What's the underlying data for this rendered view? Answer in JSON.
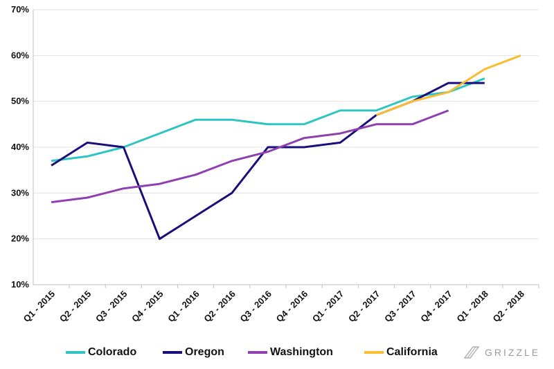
{
  "chart_data": {
    "type": "line",
    "title": "",
    "xlabel": "",
    "ylabel": "",
    "categories": [
      "Q1 - 2015",
      "Q2 - 2015",
      "Q3 - 2015",
      "Q4 - 2015",
      "Q1 - 2016",
      "Q2 - 2016",
      "Q3 - 2016",
      "Q4 - 2016",
      "Q1 - 2017",
      "Q2 - 2017",
      "Q3 - 2017",
      "Q4 - 2017",
      "Q1 - 2018",
      "Q2 - 2018"
    ],
    "y_ticks": [
      "10%",
      "20%",
      "30%",
      "40%",
      "50%",
      "60%",
      "70%"
    ],
    "ylim": [
      10,
      70
    ],
    "y_unit": "%",
    "grid": true,
    "legend_position": "bottom",
    "series": [
      {
        "name": "Colorado",
        "color": "#2ec4c4",
        "values": [
          37,
          38,
          40,
          43,
          46,
          46,
          45,
          45,
          48,
          48,
          51,
          52,
          55,
          null
        ]
      },
      {
        "name": "Oregon",
        "color": "#1a0f7a",
        "values": [
          36,
          41,
          40,
          20,
          25,
          30,
          40,
          40,
          41,
          47,
          50,
          54,
          54,
          null
        ]
      },
      {
        "name": "Washington",
        "color": "#8e3fb0",
        "values": [
          28,
          29,
          31,
          32,
          34,
          37,
          39,
          42,
          43,
          45,
          45,
          48,
          null,
          null
        ]
      },
      {
        "name": "California",
        "color": "#f9bc32",
        "values": [
          null,
          null,
          null,
          null,
          null,
          null,
          null,
          null,
          null,
          47,
          50,
          52,
          57,
          60
        ]
      }
    ]
  },
  "brand": {
    "name": "GRIZZLE",
    "icon": "grizzle-logo-icon"
  }
}
